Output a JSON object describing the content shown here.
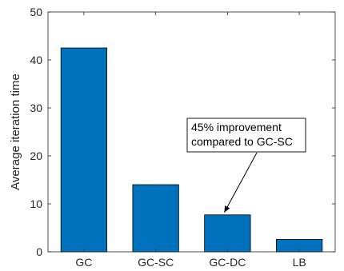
{
  "chart_data": {
    "type": "bar",
    "categories": [
      "GC",
      "GC-SC",
      "GC-DC",
      "LB"
    ],
    "values": [
      42.5,
      14.0,
      7.7,
      2.6
    ],
    "title": "",
    "xlabel": "",
    "ylabel": "Average iteration time",
    "ylim": [
      0,
      50
    ],
    "yticks": [
      0,
      10,
      20,
      30,
      40,
      50
    ],
    "grid": false,
    "bar_color": "#0072BD",
    "annotation": {
      "lines": [
        "45% improvement",
        "compared to GC-SC"
      ],
      "target_category": "GC-DC"
    }
  }
}
